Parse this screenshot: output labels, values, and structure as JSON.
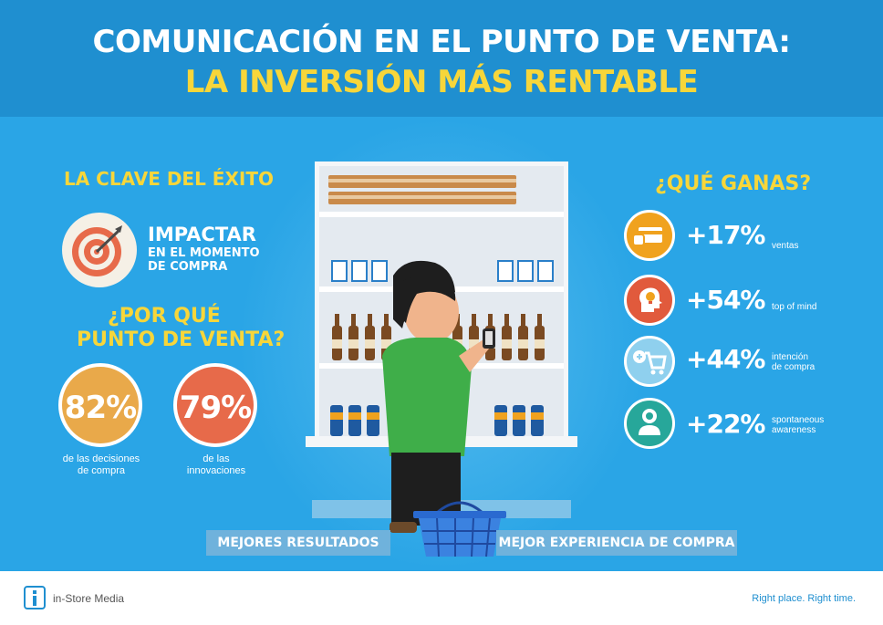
{
  "header": {
    "title_line1": "COMUNICACIÓN EN EL PUNTO DE VENTA:",
    "title_line2": "LA INVERSIÓN MÁS RENTABLE"
  },
  "left": {
    "clave_heading": "LA CLAVE DEL ÉXITO",
    "impactar_title": "IMPACTAR",
    "impactar_sub_line1": "EN EL MOMENTO",
    "impactar_sub_line2": "DE COMPRA",
    "porque_line1": "¿POR QUÉ",
    "porque_line2": "PUNTO DE VENTA?",
    "stats": [
      {
        "value": "82%",
        "caption_line1": "de las decisiones",
        "caption_line2": "de compra",
        "color": "#e9a94a"
      },
      {
        "value": "79%",
        "caption_line1": "de las",
        "caption_line2": "innovaciones",
        "color": "#e76a4a"
      }
    ]
  },
  "right": {
    "ganas_heading": "¿QUÉ GANAS?",
    "benefits": [
      {
        "value": "+17%",
        "label_line1": "ventas",
        "label_line2": "",
        "icon": "payment-card-icon",
        "color": "#f0a21e"
      },
      {
        "value": "+54%",
        "label_line1": "top of mind",
        "label_line2": "",
        "icon": "idea-head-icon",
        "color": "#e15a3c"
      },
      {
        "value": "+44%",
        "label_line1": "intención",
        "label_line2": "de compra",
        "icon": "shopping-cart-plus-icon",
        "color": "#8fd0ee"
      },
      {
        "value": "+22%",
        "label_line1": "spontaneous",
        "label_line2": "awareness",
        "icon": "awareness-person-icon",
        "color": "#27a79a"
      }
    ]
  },
  "bottom": {
    "left_pill": "MEJORES RESULTADOS",
    "right_pill": "MEJOR EXPERIENCIA DE COMPRA"
  },
  "footer": {
    "brand": "in-Store Media",
    "slogan": "Right place. Right time."
  }
}
